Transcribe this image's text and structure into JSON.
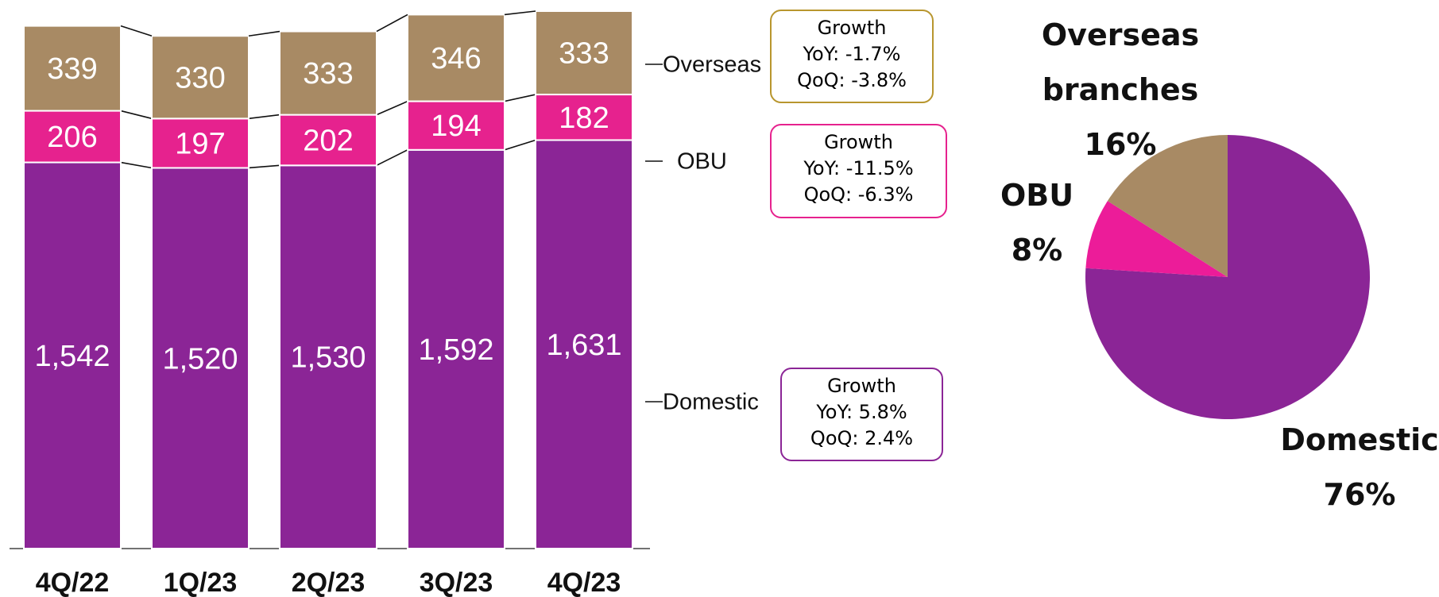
{
  "chart_data": [
    {
      "type": "stacked_bar",
      "categories": [
        "4Q/22",
        "1Q/23",
        "2Q/23",
        "3Q/23",
        "4Q/23"
      ],
      "series": [
        {
          "name": "Domestic",
          "color": "#8b2596",
          "values": [
            1542,
            1520,
            1530,
            1592,
            1631
          ],
          "value_labels": [
            "1,542",
            "1,520",
            "1,530",
            "1,592",
            "1,631"
          ]
        },
        {
          "name": "OBU",
          "color": "#e6228e",
          "values": [
            206,
            197,
            202,
            194,
            182
          ]
        },
        {
          "name": "Overseas",
          "color": "#a88a64",
          "values": [
            339,
            330,
            333,
            346,
            333
          ]
        }
      ],
      "annotations": [
        {
          "color": "#8b2596",
          "text": [
            "Growth",
            "YoY: 5.8%",
            "QoQ: 2.4%"
          ]
        },
        {
          "color": "#e6228e",
          "text": [
            "Growth",
            "YoY: -11.5%",
            "QoQ: -6.3%"
          ]
        },
        {
          "color": "#b8962e",
          "text": [
            "Growth",
            "YoY: -1.7%",
            "QoQ: -3.8%"
          ]
        }
      ]
    },
    {
      "type": "pie",
      "categories": [
        "Domestic",
        "OBU",
        "Overseas branches"
      ],
      "values": [
        76,
        8,
        16
      ],
      "value_labels": [
        "76%",
        "8%",
        "16%"
      ],
      "colors": [
        "#8b2596",
        "#ec1c99",
        "#a88a64"
      ]
    }
  ]
}
